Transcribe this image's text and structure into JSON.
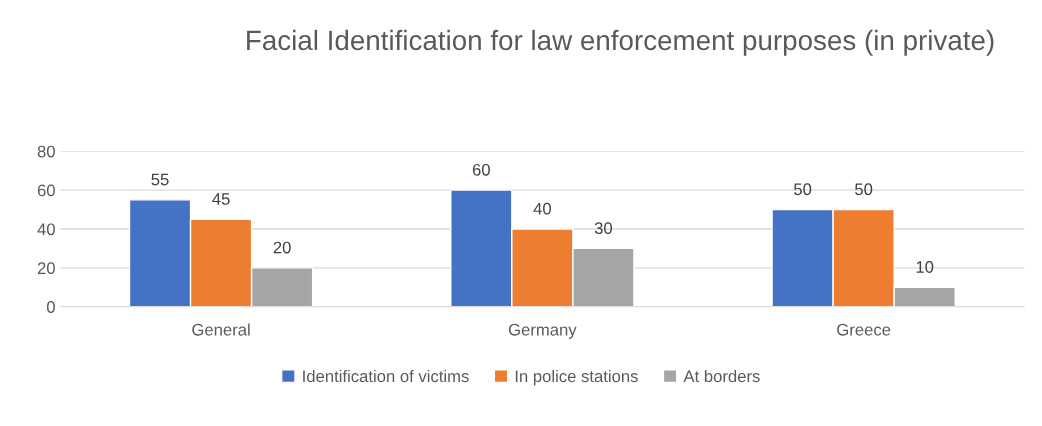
{
  "chart_data": {
    "type": "bar",
    "title": "Facial Identification for law enforcement purposes (in private)",
    "categories": [
      "General",
      "Germany",
      "Greece"
    ],
    "series": [
      {
        "name": "Identification of victims",
        "color": "#4472c4",
        "values": [
          55,
          60,
          50
        ]
      },
      {
        "name": "In police stations",
        "color": "#ed7d31",
        "values": [
          45,
          40,
          50
        ]
      },
      {
        "name": "At borders",
        "color": "#a5a5a5",
        "values": [
          20,
          30,
          10
        ]
      }
    ],
    "ylim": [
      0,
      80
    ],
    "yticks": [
      0,
      20,
      40,
      60,
      80
    ],
    "grid": "y",
    "legend": "bottom",
    "data_labels": true
  }
}
